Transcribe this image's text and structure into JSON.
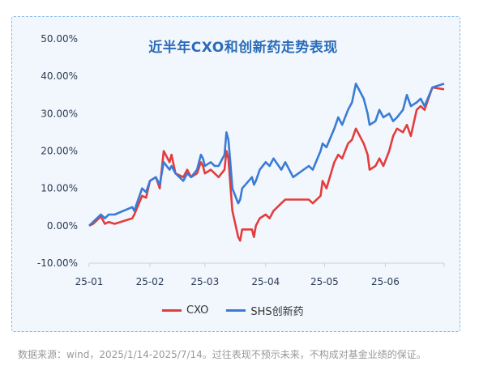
{
  "colors": {
    "cxo": "#e23d3d",
    "shs": "#3a7bd5",
    "title": "#2b6cb8",
    "axis": "#2b3a55"
  },
  "chart_data": {
    "type": "line",
    "title": "近半年CXO和创新药走势表现",
    "xlabel": "",
    "ylabel": "",
    "x_ticks": [
      "25-01",
      "25-02",
      "25-03",
      "25-04",
      "25-05",
      "25-06"
    ],
    "y_ticks": [
      "-10.00%",
      "0.00%",
      "10.00%",
      "20.00%",
      "30.00%",
      "40.00%",
      "50.00%"
    ],
    "ylim": [
      -10,
      50
    ],
    "xlim": [
      "2025-01-14",
      "2025-07-14"
    ],
    "grid": false,
    "legend_position": "bottom",
    "series": [
      {
        "name": "CXO",
        "color": "#e23d3d",
        "points": [
          [
            "2025-01-14",
            0
          ],
          [
            "2025-01-16",
            0.5
          ],
          [
            "2025-01-20",
            2.5
          ],
          [
            "2025-01-22",
            0.5
          ],
          [
            "2025-01-24",
            1
          ],
          [
            "2025-01-27",
            0.5
          ],
          [
            "2025-02-05",
            2
          ],
          [
            "2025-02-06",
            3
          ],
          [
            "2025-02-10",
            8
          ],
          [
            "2025-02-12",
            7.5
          ],
          [
            "2025-02-14",
            12
          ],
          [
            "2025-02-17",
            13
          ],
          [
            "2025-02-19",
            10
          ],
          [
            "2025-02-21",
            20
          ],
          [
            "2025-02-24",
            17
          ],
          [
            "2025-02-25",
            19
          ],
          [
            "2025-02-27",
            14
          ],
          [
            "2025-03-03",
            13
          ],
          [
            "2025-03-05",
            15
          ],
          [
            "2025-03-07",
            13
          ],
          [
            "2025-03-10",
            14
          ],
          [
            "2025-03-12",
            17
          ],
          [
            "2025-03-13",
            16
          ],
          [
            "2025-03-14",
            14
          ],
          [
            "2025-03-17",
            15
          ],
          [
            "2025-03-19",
            14
          ],
          [
            "2025-03-21",
            13
          ],
          [
            "2025-03-24",
            15
          ],
          [
            "2025-03-25",
            20
          ],
          [
            "2025-03-26",
            18
          ],
          [
            "2025-03-27",
            11
          ],
          [
            "2025-03-28",
            4
          ],
          [
            "2025-03-31",
            -3
          ],
          [
            "2025-04-01",
            -4
          ],
          [
            "2025-04-02",
            -1
          ],
          [
            "2025-04-07",
            -1
          ],
          [
            "2025-04-08",
            -3
          ],
          [
            "2025-04-09",
            0
          ],
          [
            "2025-04-11",
            2
          ],
          [
            "2025-04-14",
            3
          ],
          [
            "2025-04-16",
            2
          ],
          [
            "2025-04-18",
            4
          ],
          [
            "2025-04-22",
            6
          ],
          [
            "2025-04-24",
            7
          ],
          [
            "2025-04-28",
            7
          ],
          [
            "2025-05-06",
            7
          ],
          [
            "2025-05-08",
            6
          ],
          [
            "2025-05-12",
            8
          ],
          [
            "2025-05-13",
            12
          ],
          [
            "2025-05-15",
            10
          ],
          [
            "2025-05-19",
            17
          ],
          [
            "2025-05-21",
            19
          ],
          [
            "2025-05-23",
            18
          ],
          [
            "2025-05-26",
            22
          ],
          [
            "2025-05-28",
            23
          ],
          [
            "2025-05-30",
            26
          ],
          [
            "2025-06-03",
            22
          ],
          [
            "2025-06-05",
            19
          ],
          [
            "2025-06-06",
            15
          ],
          [
            "2025-06-09",
            16
          ],
          [
            "2025-06-11",
            18
          ],
          [
            "2025-06-13",
            16
          ],
          [
            "2025-06-16",
            20
          ],
          [
            "2025-06-18",
            24
          ],
          [
            "2025-06-20",
            26
          ],
          [
            "2025-06-23",
            25
          ],
          [
            "2025-06-25",
            27
          ],
          [
            "2025-06-27",
            24
          ],
          [
            "2025-06-30",
            31
          ],
          [
            "2025-07-02",
            32
          ],
          [
            "2025-07-04",
            31
          ],
          [
            "2025-07-08",
            37
          ],
          [
            "2025-07-14",
            36.5
          ]
        ]
      },
      {
        "name": "SHS创新药",
        "color": "#3a7bd5",
        "points": [
          [
            "2025-01-14",
            0
          ],
          [
            "2025-01-16",
            1
          ],
          [
            "2025-01-20",
            3
          ],
          [
            "2025-01-22",
            2
          ],
          [
            "2025-01-24",
            3
          ],
          [
            "2025-01-27",
            3
          ],
          [
            "2025-02-05",
            5
          ],
          [
            "2025-02-06",
            4
          ],
          [
            "2025-02-10",
            10
          ],
          [
            "2025-02-12",
            9
          ],
          [
            "2025-02-14",
            12
          ],
          [
            "2025-02-17",
            13
          ],
          [
            "2025-02-19",
            11
          ],
          [
            "2025-02-21",
            17
          ],
          [
            "2025-02-24",
            15
          ],
          [
            "2025-02-25",
            16
          ],
          [
            "2025-02-27",
            14
          ],
          [
            "2025-03-03",
            12
          ],
          [
            "2025-03-05",
            14
          ],
          [
            "2025-03-07",
            13
          ],
          [
            "2025-03-10",
            15
          ],
          [
            "2025-03-12",
            19
          ],
          [
            "2025-03-13",
            18
          ],
          [
            "2025-03-14",
            16
          ],
          [
            "2025-03-17",
            17
          ],
          [
            "2025-03-19",
            16
          ],
          [
            "2025-03-21",
            16
          ],
          [
            "2025-03-24",
            19
          ],
          [
            "2025-03-25",
            25
          ],
          [
            "2025-03-26",
            23
          ],
          [
            "2025-03-27",
            17
          ],
          [
            "2025-03-28",
            10
          ],
          [
            "2025-03-31",
            6
          ],
          [
            "2025-04-01",
            7
          ],
          [
            "2025-04-02",
            10
          ],
          [
            "2025-04-07",
            13
          ],
          [
            "2025-04-08",
            11
          ],
          [
            "2025-04-09",
            12
          ],
          [
            "2025-04-11",
            15
          ],
          [
            "2025-04-14",
            17
          ],
          [
            "2025-04-16",
            16
          ],
          [
            "2025-04-18",
            18
          ],
          [
            "2025-04-22",
            15
          ],
          [
            "2025-04-24",
            17
          ],
          [
            "2025-04-28",
            13
          ],
          [
            "2025-05-06",
            16
          ],
          [
            "2025-05-08",
            15
          ],
          [
            "2025-05-12",
            20
          ],
          [
            "2025-05-13",
            22
          ],
          [
            "2025-05-15",
            21
          ],
          [
            "2025-05-19",
            26
          ],
          [
            "2025-05-21",
            29
          ],
          [
            "2025-05-23",
            27
          ],
          [
            "2025-05-26",
            31
          ],
          [
            "2025-05-28",
            33
          ],
          [
            "2025-05-30",
            38
          ],
          [
            "2025-06-03",
            34
          ],
          [
            "2025-06-05",
            30
          ],
          [
            "2025-06-06",
            27
          ],
          [
            "2025-06-09",
            28
          ],
          [
            "2025-06-11",
            31
          ],
          [
            "2025-06-13",
            29
          ],
          [
            "2025-06-16",
            30
          ],
          [
            "2025-06-18",
            28
          ],
          [
            "2025-06-20",
            29
          ],
          [
            "2025-06-23",
            31
          ],
          [
            "2025-06-25",
            35
          ],
          [
            "2025-06-27",
            32
          ],
          [
            "2025-06-30",
            33
          ],
          [
            "2025-07-02",
            34
          ],
          [
            "2025-07-04",
            32
          ],
          [
            "2025-07-08",
            37
          ],
          [
            "2025-07-14",
            38
          ]
        ]
      }
    ]
  },
  "footnote": "数据来源：wind，2025/1/14-2025/7/14。过往表现不预示未来，不构成对基金业绩的保证。"
}
